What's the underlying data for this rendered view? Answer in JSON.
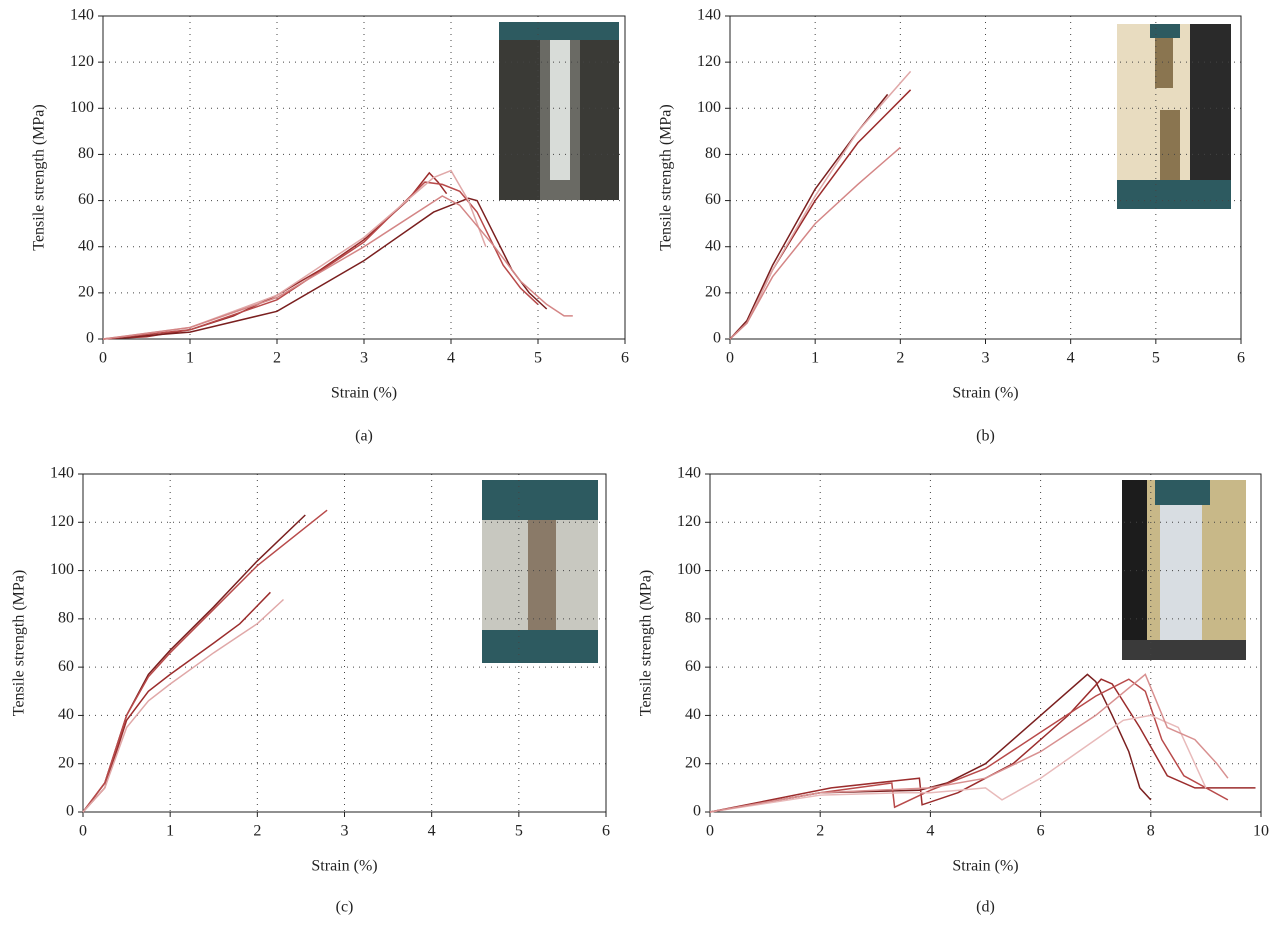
{
  "chart_data": [
    {
      "type": "line",
      "x_label": "Strain (%)",
      "y_label": "Tensile strength (MPa)",
      "caption": "(a)",
      "xlim": [
        0,
        6
      ],
      "ylim": [
        0,
        140
      ],
      "xticks": [
        0,
        1,
        2,
        3,
        4,
        5,
        6
      ],
      "yticks": [
        0,
        20,
        40,
        60,
        80,
        100,
        120,
        140
      ],
      "grid": true,
      "series": [
        {
          "color": "#9b2c2c",
          "x": [
            0,
            0.5,
            1,
            1.5,
            2,
            2.5,
            3,
            3.5,
            3.75,
            3.85,
            3.95
          ],
          "values": [
            0,
            1,
            4,
            10,
            19,
            30,
            43,
            60,
            72,
            68,
            63
          ]
        },
        {
          "color": "#7a1f1f",
          "x": [
            0,
            1,
            2,
            3,
            3.8,
            4.0,
            4.2,
            4.3,
            4.5,
            4.7,
            4.9,
            5.1
          ],
          "values": [
            0,
            3,
            12,
            34,
            55,
            58,
            61,
            60,
            45,
            30,
            20,
            13
          ]
        },
        {
          "color": "#b84a4a",
          "x": [
            0,
            1,
            2,
            3,
            3.7,
            3.9,
            4.1,
            4.3,
            4.6,
            4.8,
            5.0
          ],
          "values": [
            0,
            4,
            17,
            42,
            68,
            67,
            64,
            55,
            32,
            22,
            15
          ]
        },
        {
          "color": "#e0a8a8",
          "x": [
            0,
            1,
            2,
            3,
            3.8,
            4.0,
            4.2,
            4.4
          ],
          "values": [
            0,
            5,
            19,
            44,
            70,
            73,
            60,
            40
          ]
        },
        {
          "color": "#d48686",
          "x": [
            0,
            1,
            2,
            3,
            3.9,
            4.1,
            4.5,
            4.8,
            5.1,
            5.3,
            5.4
          ],
          "values": [
            0,
            5,
            18,
            40,
            62,
            58,
            40,
            25,
            15,
            10,
            10
          ]
        }
      ]
    },
    {
      "type": "line",
      "x_label": "Strain (%)",
      "y_label": "Tensile strength (MPa)",
      "caption": "(b)",
      "xlim": [
        0,
        6
      ],
      "ylim": [
        0,
        140
      ],
      "xticks": [
        0,
        1,
        2,
        3,
        4,
        5,
        6
      ],
      "yticks": [
        0,
        20,
        40,
        60,
        80,
        100,
        120,
        140
      ],
      "grid": true,
      "series": [
        {
          "color": "#7a1f1f",
          "x": [
            0,
            0.2,
            0.5,
            1,
            1.5,
            1.85
          ],
          "values": [
            0,
            8,
            32,
            65,
            90,
            106
          ]
        },
        {
          "color": "#9b2c2c",
          "x": [
            0,
            0.2,
            0.5,
            1,
            1.5,
            2.12
          ],
          "values": [
            0,
            7,
            30,
            60,
            85,
            108
          ]
        },
        {
          "color": "#e0a8a8",
          "x": [
            0,
            0.2,
            0.5,
            1,
            1.5,
            2.12
          ],
          "values": [
            0,
            7,
            30,
            62,
            90,
            116
          ]
        },
        {
          "color": "#d48686",
          "x": [
            0,
            0.2,
            0.5,
            1,
            1.5,
            2.0
          ],
          "values": [
            0,
            7,
            27,
            50,
            67,
            83
          ]
        }
      ]
    },
    {
      "type": "line",
      "x_label": "Strain (%)",
      "y_label": "Tensile strength (MPa)",
      "caption": "(c)",
      "xlim": [
        0,
        6
      ],
      "ylim": [
        0,
        140
      ],
      "xticks": [
        0,
        1,
        2,
        3,
        4,
        5,
        6
      ],
      "yticks": [
        0,
        20,
        40,
        60,
        80,
        100,
        120,
        140
      ],
      "grid": true,
      "series": [
        {
          "color": "#7a1f1f",
          "x": [
            0,
            0.25,
            0.5,
            0.75,
            1,
            1.5,
            2,
            2.55
          ],
          "values": [
            0,
            12,
            40,
            57,
            67,
            85,
            104,
            123
          ]
        },
        {
          "color": "#b84a4a",
          "x": [
            0,
            0.25,
            0.5,
            0.75,
            1,
            1.5,
            2,
            2.8
          ],
          "values": [
            0,
            12,
            40,
            56,
            66,
            84,
            102,
            125
          ]
        },
        {
          "color": "#9b2c2c",
          "x": [
            0,
            0.25,
            0.5,
            0.75,
            1,
            1.5,
            1.8,
            2.15
          ],
          "values": [
            0,
            10,
            38,
            50,
            57,
            70,
            78,
            91
          ]
        },
        {
          "color": "#e0a8a8",
          "x": [
            0,
            0.25,
            0.5,
            0.75,
            1,
            1.5,
            2,
            2.3
          ],
          "values": [
            0,
            10,
            35,
            46,
            53,
            66,
            78,
            88
          ]
        }
      ]
    },
    {
      "type": "line",
      "x_label": "Strain (%)",
      "y_label": "Tensile strength (MPa)",
      "caption": "(d)",
      "xlim": [
        0,
        10
      ],
      "ylim": [
        0,
        140
      ],
      "xticks": [
        0,
        2,
        4,
        6,
        8,
        10
      ],
      "yticks": [
        0,
        20,
        40,
        60,
        80,
        100,
        120,
        140
      ],
      "grid": true,
      "series": [
        {
          "color": "#7a1f1f",
          "x": [
            0,
            2,
            3.8,
            4.3,
            5,
            6,
            6.85,
            7.0,
            7.3,
            7.6,
            7.8,
            8.0
          ],
          "values": [
            0,
            8,
            9,
            12,
            20,
            40,
            57,
            54,
            40,
            25,
            10,
            5
          ]
        },
        {
          "color": "#9b2c2c",
          "x": [
            0,
            2.2,
            3.8,
            3.85,
            4.5,
            5.5,
            6.5,
            7.1,
            7.3,
            7.8,
            8.3,
            8.8,
            9.9
          ],
          "values": [
            0,
            10,
            14,
            3,
            8,
            20,
            40,
            55,
            53,
            35,
            15,
            10,
            10
          ]
        },
        {
          "color": "#b84a4a",
          "x": [
            0,
            2,
            3.3,
            3.35,
            4,
            5,
            6,
            7,
            7.6,
            7.9,
            8.2,
            8.6,
            9.4
          ],
          "values": [
            0,
            8,
            12,
            2,
            9,
            18,
            33,
            48,
            55,
            50,
            30,
            15,
            5
          ]
        },
        {
          "color": "#e8baba",
          "x": [
            0,
            2,
            3.5,
            4,
            5,
            5.3,
            6,
            6.5,
            7,
            7.5,
            8,
            8.5,
            9.0
          ],
          "values": [
            0,
            7,
            8,
            8,
            10,
            5,
            14,
            22,
            30,
            38,
            40,
            35,
            10
          ]
        },
        {
          "color": "#d89090",
          "x": [
            0,
            2,
            4,
            5,
            6,
            7,
            7.9,
            8.3,
            8.8,
            9.2,
            9.4
          ],
          "values": [
            0,
            8,
            10,
            14,
            25,
            40,
            57,
            35,
            30,
            20,
            14
          ]
        }
      ]
    }
  ]
}
